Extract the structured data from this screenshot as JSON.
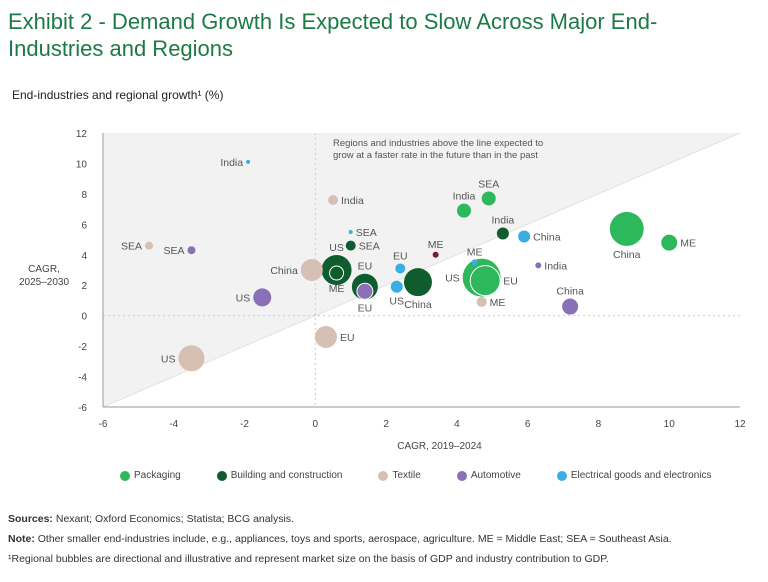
{
  "title": "Exhibit 2 - Demand Growth Is Expected to Slow Across Major End-Industries and Regions",
  "subtitle": "End-industries and regional growth¹ (%)",
  "annotation": [
    "Regions and industries above the line expected to",
    "grow at a faster rate in the future than in the past"
  ],
  "footer": {
    "sources_label": "Sources:",
    "sources_text": " Nexant; Oxford Economics; Statista; BCG analysis.",
    "note_label": "Note:",
    "note_text": " Other smaller end-industries include, e.g., appliances, toys and sports, aerospace, agriculture. ME = Middle East; SEA = Southeast Asia.",
    "footnote": "¹Regional bubbles are directional and illustrative and represent market size on the basis of GDP and industry contribution to GDP."
  },
  "chart_data": {
    "type": "scatter",
    "subtype": "bubble",
    "xlabel": "CAGR, 2019–2024",
    "ylabel": [
      "CAGR,",
      "2025–2030"
    ],
    "xlim": [
      -6,
      12
    ],
    "ylim": [
      -6,
      12
    ],
    "xticks": [
      -6,
      -4,
      -2,
      0,
      2,
      4,
      6,
      8,
      10,
      12
    ],
    "yticks": [
      -6,
      -4,
      -2,
      0,
      2,
      4,
      6,
      8,
      10,
      12
    ],
    "reference_line": "y = x",
    "legend_position": "bottom",
    "series": [
      {
        "name": "Packaging",
        "color": "#2eb85c",
        "points": [
          {
            "label": "SEA",
            "x": 4.9,
            "y": 7.7,
            "size": 7,
            "label_pos": "top"
          },
          {
            "label": "India",
            "x": 4.2,
            "y": 6.9,
            "size": 7,
            "label_pos": "top"
          },
          {
            "label": "China",
            "x": 8.8,
            "y": 5.7,
            "size": 17,
            "label_pos": "bottom"
          },
          {
            "label": "ME",
            "x": 10.0,
            "y": 4.8,
            "size": 8,
            "label_pos": "right"
          },
          {
            "label": "US",
            "x": 4.7,
            "y": 2.5,
            "size": 19,
            "label_pos": "left"
          },
          {
            "label": "EU",
            "x": 4.8,
            "y": 2.3,
            "size": 15,
            "label_pos": "right",
            "outline": true
          }
        ]
      },
      {
        "name": "Building and construction",
        "color": "#0f5c2e",
        "points": [
          {
            "label": "SEA",
            "x": 1.0,
            "y": 4.6,
            "size": 5,
            "label_pos": "right"
          },
          {
            "label": "US",
            "x": 0.6,
            "y": 3.0,
            "size": 15,
            "label_pos": "top"
          },
          {
            "label": "ME",
            "x": 0.6,
            "y": 2.8,
            "size": 7,
            "label_pos": "bottom",
            "outline": true
          },
          {
            "label": "EU",
            "x": 1.4,
            "y": 1.9,
            "size": 13,
            "label_pos": "top"
          },
          {
            "label": "China",
            "x": 2.9,
            "y": 2.2,
            "size": 14,
            "label_pos": "bottom"
          },
          {
            "label": "India",
            "x": 5.3,
            "y": 5.4,
            "size": 6,
            "label_pos": "top"
          }
        ]
      },
      {
        "name": "Textile",
        "color": "#d5c0b3",
        "points": [
          {
            "label": "India",
            "x": 0.5,
            "y": 7.6,
            "size": 5,
            "label_pos": "right"
          },
          {
            "label": "SEA",
            "x": -4.7,
            "y": 4.6,
            "size": 4,
            "label_pos": "left"
          },
          {
            "label": "China",
            "x": -0.1,
            "y": 3.0,
            "size": 11,
            "label_pos": "left"
          },
          {
            "label": "EU",
            "x": 0.3,
            "y": -1.4,
            "size": 11,
            "label_pos": "right"
          },
          {
            "label": "US",
            "x": -3.5,
            "y": -2.8,
            "size": 13,
            "label_pos": "left"
          },
          {
            "label": "ME",
            "x": 4.7,
            "y": 0.9,
            "size": 5,
            "label_pos": "right"
          }
        ]
      },
      {
        "name": "Automotive",
        "color": "#8a70b6",
        "points": [
          {
            "label": "SEA",
            "x": -3.5,
            "y": 4.3,
            "size": 4,
            "label_pos": "left"
          },
          {
            "label": "US",
            "x": -1.5,
            "y": 1.2,
            "size": 9,
            "label_pos": "left"
          },
          {
            "label": "EU",
            "x": 1.4,
            "y": 1.6,
            "size": 8,
            "label_pos": "bottom",
            "outline": true
          },
          {
            "label": "India",
            "x": 6.3,
            "y": 3.3,
            "size": 3,
            "label_pos": "right"
          },
          {
            "label": "China",
            "x": 7.2,
            "y": 0.6,
            "size": 8,
            "label_pos": "top"
          }
        ]
      },
      {
        "name": "Electrical goods and electronics",
        "color": "#3aaee3",
        "points": [
          {
            "label": "India",
            "x": -1.9,
            "y": 10.1,
            "size": 2,
            "label_pos": "left"
          },
          {
            "label": "SEA",
            "x": 1.0,
            "y": 5.5,
            "size": 2,
            "label_pos": "right"
          },
          {
            "label": "EU",
            "x": 2.4,
            "y": 3.1,
            "size": 5,
            "label_pos": "top"
          },
          {
            "label": "US",
            "x": 2.3,
            "y": 1.9,
            "size": 6,
            "label_pos": "bottom"
          },
          {
            "label": "China",
            "x": 5.9,
            "y": 5.2,
            "size": 6,
            "label_pos": "right"
          },
          {
            "label": "ME",
            "x": 4.5,
            "y": 3.5,
            "size": 3,
            "label_pos": "top"
          }
        ]
      },
      {
        "name": "",
        "color": "#7a1a2e",
        "in_legend": false,
        "points": [
          {
            "label": "ME",
            "x": 3.4,
            "y": 4.0,
            "size": 3,
            "label_pos": "top"
          }
        ]
      }
    ]
  }
}
